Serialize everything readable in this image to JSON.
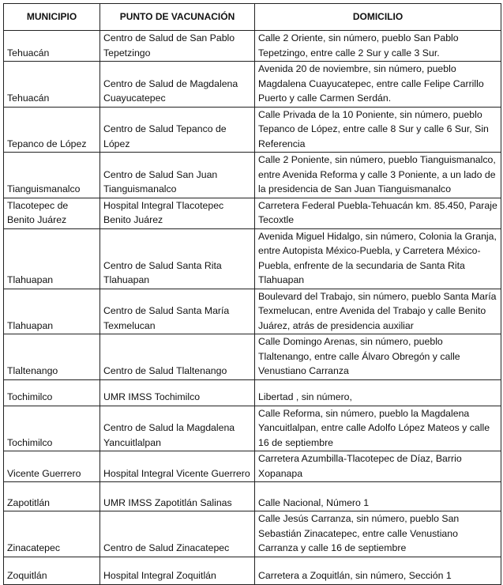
{
  "headers": [
    "MUNICIPIO",
    "PUNTO DE  VACUNACIÓN",
    "DOMICILIO"
  ],
  "rows": [
    [
      "Tehuacán",
      "Centro de Salud de San Pablo Tepetzingo",
      "Calle 2 Oriente, sin número, pueblo San Pablo Tepetzingo, entre calle 2 Sur y calle 3 Sur."
    ],
    [
      "Tehuacán",
      "Centro de Salud de Magdalena Cuayucatepec",
      "Avenida 20 de noviembre, sin número, pueblo Magdalena Cuayucatepec, entre calle Felipe Carrillo Puerto y calle Carmen Serdán."
    ],
    [
      "Tepanco de López",
      "Centro de Salud Tepanco de López",
      "Calle Privada de la 10 Poniente, sin número, pueblo Tepanco de López, entre calle 8 Sur y calle 6 Sur, Sin Referencia"
    ],
    [
      "Tianguismanalco",
      "Centro de Salud San Juan Tianguismanalco",
      "Calle 2 Poniente, sin número, pueblo Tianguismanalco, entre Avenida Reforma y calle 3 Poniente, a un lado de la presidencia de San Juan Tianguismanalco"
    ],
    [
      "Tlacotepec de Benito Juárez",
      " Hospital Integral Tlacotepec Benito Juárez",
      "Carretera Federal Puebla-Tehuacán km. 85.450, Paraje Tecoxtle"
    ],
    [
      "Tlahuapan",
      "Centro de Salud Santa Rita Tlahuapan",
      "Avenida Miguel Hidalgo, sin número, Colonia la Granja, entre Autopista México-Puebla, y Carretera México-Puebla, enfrente de la secundaria de Santa Rita Tlahuapan"
    ],
    [
      "Tlahuapan",
      "Centro de Salud Santa María Texmelucan",
      "Boulevard del Trabajo, sin número, pueblo Santa María Texmelucan, entre Avenida del Trabajo y calle Benito Juárez, atrás de presidencia auxiliar"
    ],
    [
      "Tlaltenango",
      "Centro de Salud Tlaltenango",
      "Calle Domingo Arenas, sin número, pueblo Tlaltenango, entre calle Álvaro Obregón y calle Venustiano Carranza"
    ],
    [
      "Tochimilco",
      "UMR IMSS Tochimilco",
      "Libertad , sin número,"
    ],
    [
      "Tochimilco",
      "Centro de Salud la Magdalena Yancuitlalpan",
      "Calle Reforma, sin número, pueblo la Magdalena Yancuitlalpan, entre calle Adolfo López Mateos y calle 16 de septiembre"
    ],
    [
      "Vicente Guerrero",
      "Hospital Integral Vicente Guerrero",
      "Carretera Azumbilla-Tlacotepec de Díaz, Barrio Xopanapa"
    ],
    [
      "Zapotitlán",
      "UMR IMSS Zapotitlán Salinas",
      "Calle Nacional, Número 1"
    ],
    [
      "Zinacatepec",
      "Centro de Salud Zinacatepec",
      "Calle Jesús Carranza, sin número, pueblo San Sebastián Zinacatepec, entre calle Venustiano Carranza y calle 16 de septiembre"
    ],
    [
      "Zoquitlán",
      "Hospital Integral Zoquitlán",
      "Carretera a Zoquitlán, sin número, Sección 1"
    ]
  ]
}
